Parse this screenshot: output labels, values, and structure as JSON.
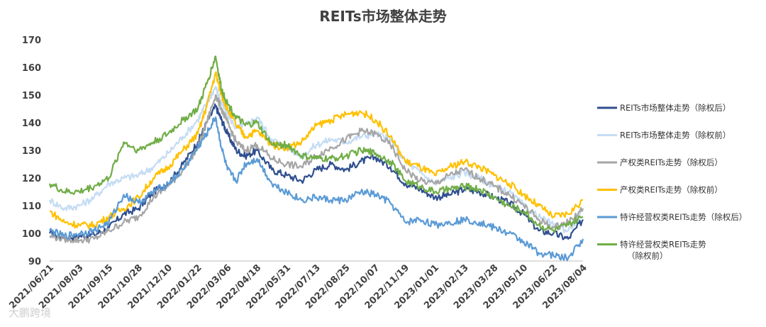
{
  "chart_data": {
    "type": "line",
    "title": "REITs市场整体走势",
    "xlabel": "",
    "ylabel": "",
    "ylim": [
      90,
      170
    ],
    "yticks": [
      90,
      100,
      110,
      120,
      130,
      140,
      150,
      160,
      170
    ],
    "x_tick_labels": [
      "2021/06/21",
      "2021/08/03",
      "2021/09/15",
      "2021/10/28",
      "2021/12/10",
      "2022/01/22",
      "2022/03/06",
      "2022/04/18",
      "2022/05/31",
      "2022/07/13",
      "2022/08/25",
      "2022/10/07",
      "2022/11/19",
      "2023/01/01",
      "2023/02/13",
      "2023/03/28",
      "2023/05/10",
      "2023/06/22",
      "2023/08/04"
    ],
    "x_tick_index": [
      0,
      1,
      2,
      3,
      4,
      5,
      6,
      7,
      8,
      9,
      10,
      11,
      12,
      13,
      14,
      15,
      16,
      17,
      18
    ],
    "x_span": [
      0,
      18
    ],
    "grid": false,
    "legend_placement": "right",
    "series": [
      {
        "name": "REITs市场整体走势（除权后）",
        "color": "#2f4f8f",
        "points": [
          [
            0,
            100
          ],
          [
            0.5,
            98.5
          ],
          [
            1,
            99
          ],
          [
            1.5,
            99.5
          ],
          [
            2,
            102
          ],
          [
            2.5,
            107
          ],
          [
            3,
            109
          ],
          [
            3.5,
            115
          ],
          [
            4,
            118
          ],
          [
            4.5,
            125
          ],
          [
            5,
            133
          ],
          [
            5.3,
            140
          ],
          [
            5.6,
            146
          ],
          [
            5.8,
            141
          ],
          [
            6,
            136
          ],
          [
            6.3,
            130
          ],
          [
            6.6,
            128
          ],
          [
            7,
            130
          ],
          [
            7.5,
            123
          ],
          [
            8,
            121
          ],
          [
            8.5,
            119
          ],
          [
            9,
            123
          ],
          [
            9.5,
            125
          ],
          [
            10,
            123
          ],
          [
            10.5,
            126
          ],
          [
            11,
            127.5
          ],
          [
            11.5,
            124
          ],
          [
            12,
            118
          ],
          [
            12.5,
            116
          ],
          [
            13,
            113
          ],
          [
            13.5,
            114
          ],
          [
            14,
            116
          ],
          [
            14.5,
            115
          ],
          [
            15,
            113
          ],
          [
            15.5,
            111
          ],
          [
            16,
            107
          ],
          [
            16.5,
            101
          ],
          [
            17,
            100
          ],
          [
            17.5,
            98
          ],
          [
            18,
            105
          ]
        ]
      },
      {
        "name": "REITs市场整体走势（除权前）",
        "color": "#c5dcf4",
        "points": [
          [
            0,
            112
          ],
          [
            0.5,
            109
          ],
          [
            1,
            110
          ],
          [
            1.5,
            113
          ],
          [
            2,
            118
          ],
          [
            2.5,
            120
          ],
          [
            3,
            121
          ],
          [
            3.5,
            124
          ],
          [
            4,
            129
          ],
          [
            4.5,
            135
          ],
          [
            5,
            141
          ],
          [
            5.3,
            147
          ],
          [
            5.6,
            153
          ],
          [
            5.8,
            147
          ],
          [
            6,
            143
          ],
          [
            6.3,
            138
          ],
          [
            6.6,
            139
          ],
          [
            7,
            142
          ],
          [
            7.5,
            134
          ],
          [
            8,
            131
          ],
          [
            8.5,
            128
          ],
          [
            9,
            132
          ],
          [
            9.5,
            134
          ],
          [
            10,
            133
          ],
          [
            10.5,
            135
          ],
          [
            11,
            136
          ],
          [
            11.5,
            134
          ],
          [
            12,
            126
          ],
          [
            12.5,
            122
          ],
          [
            13,
            118
          ],
          [
            13.5,
            120
          ],
          [
            14,
            122
          ],
          [
            14.5,
            120
          ],
          [
            15,
            117
          ],
          [
            15.5,
            115
          ],
          [
            16,
            110
          ],
          [
            16.5,
            106
          ],
          [
            17,
            103
          ],
          [
            17.5,
            101
          ],
          [
            18,
            108
          ]
        ]
      },
      {
        "name": "产权类REITs走势（除权后）",
        "color": "#a6a6a6",
        "points": [
          [
            0,
            99
          ],
          [
            0.5,
            98
          ],
          [
            1,
            97.5
          ],
          [
            1.5,
            98
          ],
          [
            2,
            101
          ],
          [
            2.5,
            104
          ],
          [
            3,
            106
          ],
          [
            3.5,
            113
          ],
          [
            4,
            117
          ],
          [
            4.5,
            123
          ],
          [
            5,
            131
          ],
          [
            5.3,
            140
          ],
          [
            5.6,
            150
          ],
          [
            5.8,
            145
          ],
          [
            6,
            140
          ],
          [
            6.3,
            133
          ],
          [
            6.6,
            130
          ],
          [
            7,
            132
          ],
          [
            7.5,
            127
          ],
          [
            8,
            125
          ],
          [
            8.5,
            124
          ],
          [
            9,
            128
          ],
          [
            9.5,
            131
          ],
          [
            10,
            134
          ],
          [
            10.5,
            137
          ],
          [
            11,
            136
          ],
          [
            11.5,
            132
          ],
          [
            12,
            123
          ],
          [
            12.5,
            119
          ],
          [
            13,
            118
          ],
          [
            13.5,
            121
          ],
          [
            14,
            123
          ],
          [
            14.5,
            120
          ],
          [
            15,
            117
          ],
          [
            15.5,
            114
          ],
          [
            16,
            110
          ],
          [
            16.5,
            105
          ],
          [
            17,
            102
          ],
          [
            17.5,
            104
          ],
          [
            18,
            109
          ]
        ]
      },
      {
        "name": "产权类REITs走势（除权前）",
        "color": "#ffc000",
        "points": [
          [
            0,
            108
          ],
          [
            0.5,
            104
          ],
          [
            1,
            103
          ],
          [
            1.5,
            103
          ],
          [
            2,
            106
          ],
          [
            2.5,
            109
          ],
          [
            3,
            113
          ],
          [
            3.5,
            120
          ],
          [
            4,
            124
          ],
          [
            4.5,
            130
          ],
          [
            5,
            136
          ],
          [
            5.3,
            146
          ],
          [
            5.6,
            158
          ],
          [
            5.8,
            150
          ],
          [
            6,
            145
          ],
          [
            6.3,
            139
          ],
          [
            6.6,
            135
          ],
          [
            7,
            137
          ],
          [
            7.5,
            132
          ],
          [
            8,
            131
          ],
          [
            8.5,
            133
          ],
          [
            9,
            139
          ],
          [
            9.5,
            141
          ],
          [
            10,
            143
          ],
          [
            10.5,
            144
          ],
          [
            11,
            141
          ],
          [
            11.5,
            135
          ],
          [
            12,
            126
          ],
          [
            12.5,
            124
          ],
          [
            13,
            121
          ],
          [
            13.5,
            124
          ],
          [
            14,
            126
          ],
          [
            14.5,
            124
          ],
          [
            15,
            121
          ],
          [
            15.5,
            118
          ],
          [
            16,
            114
          ],
          [
            16.5,
            110
          ],
          [
            17,
            106
          ],
          [
            17.5,
            107
          ],
          [
            18,
            112
          ]
        ]
      },
      {
        "name": "特许经营权类REITs走势（除权后）",
        "color": "#5b9bd5",
        "points": [
          [
            0,
            101
          ],
          [
            0.5,
            99
          ],
          [
            1,
            100
          ],
          [
            1.5,
            101
          ],
          [
            2,
            104
          ],
          [
            2.5,
            114
          ],
          [
            3,
            111
          ],
          [
            3.5,
            115
          ],
          [
            4,
            118
          ],
          [
            4.5,
            123
          ],
          [
            5,
            131
          ],
          [
            5.3,
            136
          ],
          [
            5.6,
            142
          ],
          [
            5.8,
            131
          ],
          [
            6,
            123
          ],
          [
            6.3,
            119
          ],
          [
            6.6,
            125
          ],
          [
            7,
            127
          ],
          [
            7.5,
            118
          ],
          [
            8,
            115
          ],
          [
            8.5,
            112
          ],
          [
            9,
            113
          ],
          [
            9.5,
            112
          ],
          [
            10,
            112
          ],
          [
            10.5,
            115
          ],
          [
            11,
            114
          ],
          [
            11.5,
            111
          ],
          [
            12,
            104
          ],
          [
            12.5,
            105
          ],
          [
            13,
            103
          ],
          [
            13.5,
            104
          ],
          [
            14,
            105
          ],
          [
            14.5,
            104
          ],
          [
            15,
            102
          ],
          [
            15.5,
            100
          ],
          [
            16,
            97
          ],
          [
            16.5,
            93
          ],
          [
            17,
            92
          ],
          [
            17.5,
            91
          ],
          [
            18,
            98
          ]
        ]
      },
      {
        "name": "特许经营权类REITs走势（除权前）",
        "color": "#70ad47",
        "points": [
          [
            0,
            118
          ],
          [
            0.5,
            115
          ],
          [
            1,
            115
          ],
          [
            1.5,
            117
          ],
          [
            2,
            120
          ],
          [
            2.5,
            133
          ],
          [
            3,
            130
          ],
          [
            3.5,
            133
          ],
          [
            4,
            136
          ],
          [
            4.5,
            141
          ],
          [
            5,
            145
          ],
          [
            5.3,
            154
          ],
          [
            5.6,
            164
          ],
          [
            5.8,
            152
          ],
          [
            6,
            147
          ],
          [
            6.3,
            142
          ],
          [
            6.6,
            139
          ],
          [
            7,
            140
          ],
          [
            7.5,
            132
          ],
          [
            8,
            132
          ],
          [
            8.5,
            128
          ],
          [
            9,
            127
          ],
          [
            9.5,
            127
          ],
          [
            10,
            128
          ],
          [
            10.5,
            130
          ],
          [
            11,
            129
          ],
          [
            11.5,
            126
          ],
          [
            12,
            119
          ],
          [
            12.5,
            117
          ],
          [
            13,
            115
          ],
          [
            13.5,
            116
          ],
          [
            14,
            117
          ],
          [
            14.5,
            116
          ],
          [
            15,
            113
          ],
          [
            15.5,
            110
          ],
          [
            16,
            108
          ],
          [
            16.5,
            103
          ],
          [
            17,
            101
          ],
          [
            17.5,
            103
          ],
          [
            18,
            106
          ]
        ]
      }
    ]
  },
  "legend": {
    "items": [
      {
        "label": "REITs市场整体走势（除权后）",
        "color": "#2f4f8f"
      },
      {
        "label": "REITs市场整体走势（除权前）",
        "color": "#c5dcf4"
      },
      {
        "label": "产权类REITs走势（除权后）",
        "color": "#a6a6a6"
      },
      {
        "label": "产权类REITs走势（除权前）",
        "color": "#ffc000"
      },
      {
        "label": "特许经营权类REITs走势（除权后）",
        "color": "#5b9bd5"
      },
      {
        "label": "特许经营权类REITs走势",
        "label_line2": "（除权前）",
        "color": "#70ad47"
      }
    ]
  },
  "watermark": {
    "text": "大鹏跨境"
  }
}
